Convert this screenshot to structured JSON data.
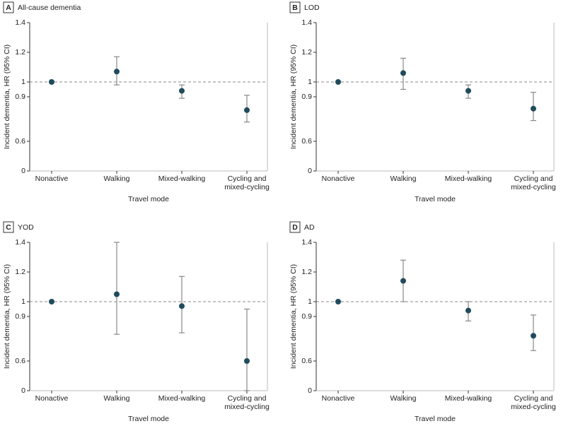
{
  "charts": [
    {
      "type": "errorbar",
      "panel": "A",
      "title": "All-cause dementia",
      "xlabel": "Travel mode",
      "ylabel": "Incident dementia, HR (95% CI)",
      "categories": [
        "Nonactive",
        "Walking",
        "Mixed-walking",
        "Cycling and mixed-cycling"
      ],
      "values": [
        1.0,
        1.07,
        0.94,
        0.81
      ],
      "lower": [
        null,
        0.98,
        0.89,
        0.73
      ],
      "upper": [
        null,
        1.17,
        0.98,
        0.91
      ],
      "ylim": [
        0,
        1.4
      ],
      "yticks": [
        0,
        0.6,
        0.9,
        1.0,
        1.2,
        1.4
      ],
      "axis_break": true,
      "reference_line": 1.0,
      "color": "#1f4b5c"
    },
    {
      "type": "errorbar",
      "panel": "B",
      "title": "LOD",
      "xlabel": "Travel mode",
      "ylabel": "Incident dementia, HR (95% CI)",
      "categories": [
        "Nonactive",
        "Walking",
        "Mixed-walking",
        "Cycling and mixed-cycling"
      ],
      "values": [
        1.0,
        1.06,
        0.94,
        0.82
      ],
      "lower": [
        null,
        0.95,
        0.89,
        0.74
      ],
      "upper": [
        null,
        1.16,
        0.98,
        0.93
      ],
      "ylim": [
        0,
        1.4
      ],
      "yticks": [
        0,
        0.6,
        0.9,
        1.0,
        1.2,
        1.4
      ],
      "axis_break": true,
      "reference_line": 1.0,
      "color": "#1f4b5c"
    },
    {
      "type": "errorbar",
      "panel": "C",
      "title": "YOD",
      "xlabel": "Travel mode",
      "ylabel": "Incident dementia, HR (95% CI)",
      "categories": [
        "Nonactive",
        "Walking",
        "Mixed-walking",
        "Cycling and mixed-cycling"
      ],
      "values": [
        1.0,
        1.05,
        0.97,
        0.6
      ],
      "lower": [
        null,
        0.78,
        0.79,
        0
      ],
      "upper": [
        null,
        1.4,
        1.17,
        0.95
      ],
      "ylim": [
        0,
        1.4
      ],
      "yticks": [
        0,
        0.6,
        0.9,
        1.0,
        1.2,
        1.4
      ],
      "axis_break": true,
      "reference_line": 1.0,
      "color": "#1f4b5c"
    },
    {
      "type": "errorbar",
      "panel": "D",
      "title": "AD",
      "xlabel": "Travel mode",
      "ylabel": "Incident dementia, HR (95% CI)",
      "categories": [
        "Nonactive",
        "Walking",
        "Mixed-walking",
        "Cycling and mixed-cycling"
      ],
      "values": [
        1.0,
        1.14,
        0.94,
        0.77
      ],
      "lower": [
        null,
        1.0,
        0.87,
        0.67
      ],
      "upper": [
        null,
        1.28,
        1.0,
        0.91
      ],
      "ylim": [
        0,
        1.4
      ],
      "yticks": [
        0,
        0.6,
        0.9,
        1.0,
        1.2,
        1.4
      ],
      "axis_break": true,
      "reference_line": 1.0,
      "color": "#1f4b5c"
    }
  ]
}
